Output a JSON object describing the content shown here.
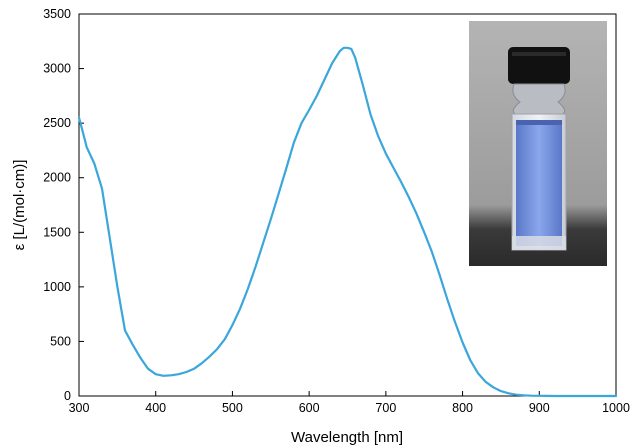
{
  "chart_data": {
    "type": "line",
    "xlabel": "Wavelength [nm]",
    "ylabel": "ε [L/(mol·cm)]",
    "xlim": [
      300,
      1000
    ],
    "ylim": [
      0,
      3500
    ],
    "xticks": [
      "300",
      "400",
      "500",
      "600",
      "700",
      "800",
      "900",
      "1000"
    ],
    "yticks": [
      "0",
      "500",
      "1000",
      "1500",
      "2000",
      "2500",
      "3000",
      "3500"
    ],
    "grid": false,
    "legend": "none",
    "series": [
      {
        "color": "#3aa6db",
        "x": [
          300,
          305,
          310,
          320,
          330,
          340,
          350,
          360,
          370,
          380,
          390,
          400,
          410,
          420,
          430,
          440,
          450,
          460,
          470,
          480,
          490,
          500,
          510,
          520,
          530,
          540,
          550,
          560,
          570,
          580,
          590,
          600,
          610,
          620,
          630,
          640,
          645,
          650,
          655,
          660,
          670,
          680,
          690,
          700,
          710,
          720,
          730,
          740,
          750,
          760,
          770,
          780,
          790,
          800,
          810,
          820,
          830,
          840,
          850,
          860,
          870,
          880,
          890,
          900,
          910,
          920,
          930,
          940,
          950,
          960,
          970,
          980,
          990,
          1000
        ],
        "y": [
          2550,
          2420,
          2280,
          2130,
          1900,
          1450,
          1000,
          600,
          470,
          350,
          250,
          200,
          185,
          190,
          200,
          220,
          250,
          300,
          360,
          430,
          520,
          650,
          800,
          980,
          1180,
          1400,
          1620,
          1850,
          2080,
          2320,
          2500,
          2620,
          2750,
          2900,
          3050,
          3160,
          3190,
          3190,
          3180,
          3100,
          2850,
          2580,
          2380,
          2220,
          2090,
          1960,
          1820,
          1670,
          1500,
          1320,
          1110,
          890,
          680,
          490,
          330,
          210,
          130,
          80,
          45,
          25,
          12,
          6,
          3,
          2,
          1,
          0,
          0,
          0,
          0,
          0,
          0,
          0,
          0,
          0
        ]
      }
    ]
  },
  "inset_photo": {
    "description_icon": "cuvette-photo",
    "solution_color": "#6f8fd9"
  }
}
